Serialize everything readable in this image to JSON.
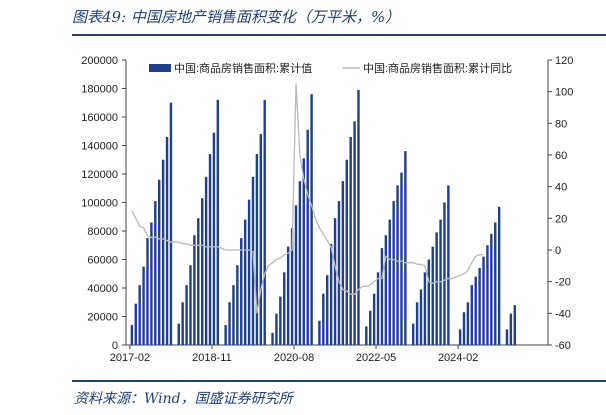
{
  "figure": {
    "title": "图表49: 中国房地产销售面积变化（万平米，%）",
    "source": "资料来源：Wind，国盛证券研究所"
  },
  "chart_data": {
    "type": "bar",
    "title": "",
    "x_ticks": [
      "2017-02",
      "2018-11",
      "2020-08",
      "2022-05",
      "2024-02"
    ],
    "y_left": {
      "ylim": [
        0,
        200000
      ],
      "ticks": [
        "0",
        "20000",
        "40000",
        "60000",
        "80000",
        "100000",
        "120000",
        "140000",
        "160000",
        "180000",
        "200000"
      ]
    },
    "y_right": {
      "ylim": [
        -60,
        120
      ],
      "ticks": [
        "-60",
        "-40",
        "-20",
        "0",
        "20",
        "40",
        "60",
        "80",
        "100",
        "120"
      ]
    },
    "legend": {
      "placement": "top"
    },
    "series": [
      {
        "name": "中国:商品房销售面积:累计值",
        "type": "bar",
        "axis": "left",
        "color": "#1f3f8f",
        "years": [
          {
            "year": 2017,
            "values": [
              14000,
              29000,
              42000,
              55000,
              75000,
              86000,
              101000,
              116000,
              130000,
              146000,
              170000
            ]
          },
          {
            "year": 2018,
            "values": [
              15000,
              30000,
              42000,
              56000,
              77000,
              89000,
              103000,
              118000,
              134000,
              149000,
              172000
            ]
          },
          {
            "year": 2019,
            "values": [
              14000,
              30000,
              42000,
              56000,
              75000,
              88000,
              102000,
              118000,
              134000,
              148000,
              172000
            ]
          },
          {
            "year": 2020,
            "values": [
              8500,
              22000,
              34000,
              51000,
              69000,
              82000,
              98000,
              115000,
              131000,
              151000,
              176000
            ]
          },
          {
            "year": 2021,
            "values": [
              17000,
              36000,
              49000,
              71000,
              89000,
              101000,
              115000,
              130000,
              146000,
              157000,
              179000
            ]
          },
          {
            "year": 2022,
            "values": [
              13000,
              24000,
              36000,
              51000,
              68000,
              77000,
              88000,
              101000,
              112000,
              121000,
              136000
            ]
          },
          {
            "year": 2023,
            "values": [
              15000,
              30000,
              39000,
              51000,
              60000,
              69000,
              79000,
              88000,
              100000,
              112000
            ]
          },
          {
            "year": 2024,
            "values": [
              11000,
              23000,
              30000,
              42000,
              48000,
              54000,
              62000,
              70000,
              78000,
              86000,
              97000
            ]
          },
          {
            "year": 2025,
            "values": [
              11000,
              22000,
              28000
            ]
          }
        ]
      },
      {
        "name": "中国:商品房销售面积:累计同比",
        "type": "line",
        "axis": "right",
        "color": "#b9b9b9",
        "values": [
          25,
          20,
          15,
          14,
          9,
          8,
          8,
          7,
          7,
          6,
          5,
          5,
          5,
          4,
          4,
          3,
          3,
          3,
          3,
          2,
          2,
          2,
          2,
          1,
          0,
          0,
          0,
          0,
          0,
          0,
          0,
          -1,
          -40,
          -25,
          -15,
          -10,
          -8,
          -6,
          -5,
          -3,
          -2,
          0,
          105,
          60,
          45,
          35,
          28,
          20,
          14,
          10,
          6,
          2,
          -10,
          -20,
          -25,
          -26,
          -28,
          -28,
          -25,
          -23,
          -23,
          -22,
          -20,
          -18,
          -18,
          -4,
          -6,
          -6,
          -7,
          -7,
          -8,
          -8,
          -8,
          -9,
          -9,
          -10,
          -20,
          -21,
          -20,
          -20,
          -19,
          -18,
          -18,
          -17,
          -16,
          -15,
          -13,
          -8,
          -4,
          -3,
          -3
        ]
      }
    ]
  }
}
